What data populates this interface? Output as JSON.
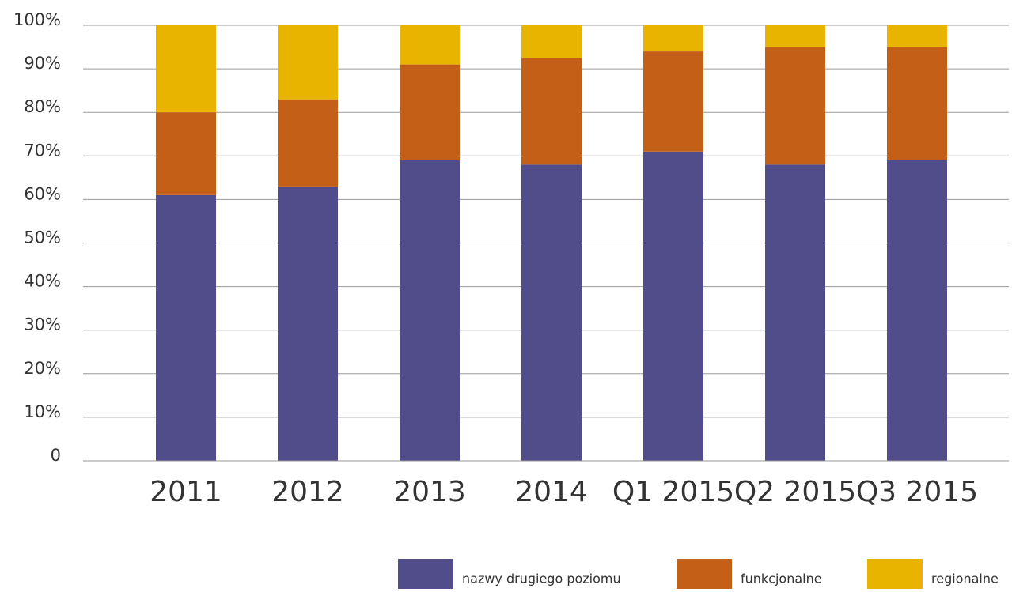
{
  "chart_data": {
    "type": "stacked_bar",
    "categories": [
      "2011",
      "2012",
      "2013",
      "2014",
      "Q1 2015",
      "Q2 2015",
      "Q3 2015"
    ],
    "series": [
      {
        "name": "nazwy drugiego poziomu",
        "color": "#514c8a",
        "values": [
          61,
          63,
          69,
          68,
          71,
          68,
          69
        ]
      },
      {
        "name": "funkcjonalne",
        "color": "#c45f18",
        "values": [
          19,
          20,
          22,
          24.5,
          23,
          27,
          26
        ]
      },
      {
        "name": "regionalne",
        "color": "#e8b400",
        "values": [
          20,
          17,
          9,
          7.5,
          6,
          5,
          5
        ]
      }
    ],
    "ylim": [
      0,
      100
    ],
    "yticks": [
      0,
      {
        "value": 10,
        "label": "10%"
      },
      {
        "value": 20,
        "label": "20%"
      },
      {
        "value": 30,
        "label": "30%"
      },
      {
        "value": 40,
        "label": "40%"
      },
      {
        "value": 50,
        "label": "50%"
      },
      {
        "value": 60,
        "label": "60%"
      },
      {
        "value": 70,
        "label": "70%"
      },
      {
        "value": 80,
        "label": "80%"
      },
      {
        "value": 90,
        "label": "90%"
      },
      {
        "value": 100,
        "label": "100%"
      }
    ],
    "grid": true,
    "legend": "bottom"
  }
}
